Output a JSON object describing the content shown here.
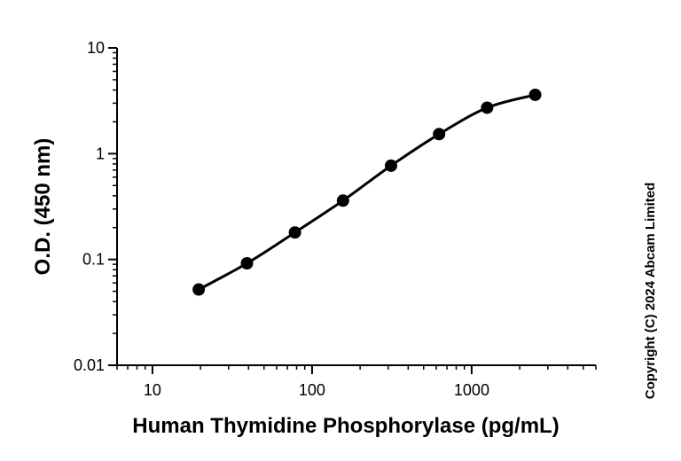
{
  "chart_data": {
    "type": "line",
    "title": "",
    "xlabel": "Human Thymidine Phosphorylase (pg/mL)",
    "ylabel": "O.D. (450 nm)",
    "xscale": "log",
    "yscale": "log",
    "xlim": [
      6,
      6000
    ],
    "ylim": [
      0.01,
      10
    ],
    "xticks": [
      "10",
      "100",
      "1000"
    ],
    "yticks": [
      "10",
      "1",
      "0.1",
      "0.01"
    ],
    "grid": false,
    "legend": "none",
    "marker": "filled circle",
    "fit": "smooth curve",
    "series": [
      {
        "x": [
          19.5,
          39.1,
          78.1,
          156.25,
          312.5,
          625,
          1250,
          2500
        ],
        "y": [
          0.052,
          0.092,
          0.18,
          0.36,
          0.77,
          1.53,
          2.72,
          3.6
        ]
      }
    ],
    "copyright": "Copyright (C) 2024 Abcam Limited"
  },
  "colors": {
    "line": "#000000",
    "marker": "#000000",
    "axis": "#000000"
  }
}
